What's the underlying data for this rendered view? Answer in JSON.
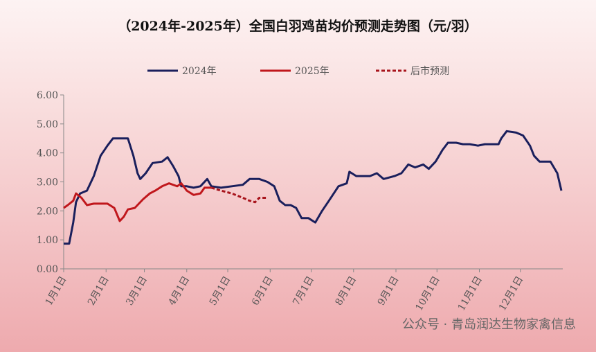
{
  "chart_data": {
    "type": "line",
    "title": "（2024年-2025年）全国白羽鸡苗均价预测走势图（元/羽）",
    "watermark": "公众号 · 青岛润达生物家禽信息",
    "xlim": [
      0,
      365
    ],
    "xticks": [
      {
        "value": 0,
        "label": "1月1日"
      },
      {
        "value": 31,
        "label": "2月1日"
      },
      {
        "value": 59,
        "label": "3月1日"
      },
      {
        "value": 90,
        "label": "4月1日"
      },
      {
        "value": 120,
        "label": "5月1日"
      },
      {
        "value": 151,
        "label": "6月1日"
      },
      {
        "value": 181,
        "label": "7月1日"
      },
      {
        "value": 212,
        "label": "8月1日"
      },
      {
        "value": 243,
        "label": "9月1日"
      },
      {
        "value": 273,
        "label": "10月1日"
      },
      {
        "value": 304,
        "label": "11月1日"
      },
      {
        "value": 334,
        "label": "12月1日"
      }
    ],
    "ylim": [
      0,
      6
    ],
    "yticks": [
      {
        "value": 0,
        "label": "0.00"
      },
      {
        "value": 1,
        "label": "1.00"
      },
      {
        "value": 2,
        "label": "2.00"
      },
      {
        "value": 3,
        "label": "3.00"
      },
      {
        "value": 4,
        "label": "4.00"
      },
      {
        "value": 5,
        "label": "5.00"
      },
      {
        "value": 6,
        "label": "6.00"
      }
    ],
    "series": [
      {
        "name": "2024年",
        "color": "#1a1f5c",
        "dash": false,
        "x": [
          0,
          4,
          7,
          9,
          12,
          17,
          22,
          27,
          32,
          36,
          47,
          51,
          54,
          56,
          60,
          65,
          72,
          76,
          80,
          84,
          86,
          90,
          95,
          100,
          105,
          108,
          115,
          123,
          131,
          136,
          143,
          149,
          154,
          158,
          162,
          166,
          170,
          174,
          179,
          184,
          189,
          194,
          201,
          207,
          209,
          214,
          219,
          224,
          229,
          234,
          242,
          247,
          252,
          257,
          263,
          267,
          272,
          277,
          281,
          287,
          292,
          297,
          303,
          308,
          318,
          320,
          324,
          331,
          336,
          341,
          344,
          348,
          356,
          361,
          364
        ],
        "values": [
          0.87,
          0.87,
          1.6,
          2.3,
          2.6,
          2.7,
          3.2,
          3.9,
          4.25,
          4.5,
          4.5,
          3.9,
          3.3,
          3.1,
          3.3,
          3.65,
          3.7,
          3.85,
          3.55,
          3.2,
          2.85,
          2.85,
          2.8,
          2.85,
          3.1,
          2.85,
          2.8,
          2.85,
          2.9,
          3.1,
          3.1,
          3.0,
          2.85,
          2.35,
          2.2,
          2.2,
          2.1,
          1.75,
          1.75,
          1.6,
          2.0,
          2.35,
          2.85,
          2.95,
          3.35,
          3.2,
          3.2,
          3.2,
          3.3,
          3.1,
          3.2,
          3.3,
          3.6,
          3.5,
          3.6,
          3.45,
          3.7,
          4.1,
          4.35,
          4.35,
          4.3,
          4.3,
          4.25,
          4.3,
          4.3,
          4.5,
          4.75,
          4.7,
          4.6,
          4.25,
          3.9,
          3.7,
          3.7,
          3.3,
          2.7
        ]
      },
      {
        "name": "2025年",
        "color": "#c0171c",
        "dash": false,
        "x": [
          0,
          3,
          7,
          9,
          13,
          17,
          22,
          32,
          37,
          41,
          44,
          47,
          52,
          58,
          63,
          67,
          72,
          77,
          83,
          86,
          90,
          95,
          100,
          103,
          108
        ],
        "values": [
          2.1,
          2.2,
          2.35,
          2.6,
          2.45,
          2.2,
          2.25,
          2.25,
          2.1,
          1.65,
          1.8,
          2.05,
          2.1,
          2.4,
          2.6,
          2.7,
          2.85,
          2.95,
          2.85,
          2.95,
          2.7,
          2.55,
          2.6,
          2.8,
          2.8
        ]
      },
      {
        "name": "后市预测",
        "color": "#a8141c",
        "dash": true,
        "x": [
          108,
          115,
          123,
          131,
          136,
          140,
          143,
          149
        ],
        "values": [
          2.8,
          2.7,
          2.6,
          2.45,
          2.35,
          2.3,
          2.45,
          2.45
        ]
      }
    ]
  }
}
